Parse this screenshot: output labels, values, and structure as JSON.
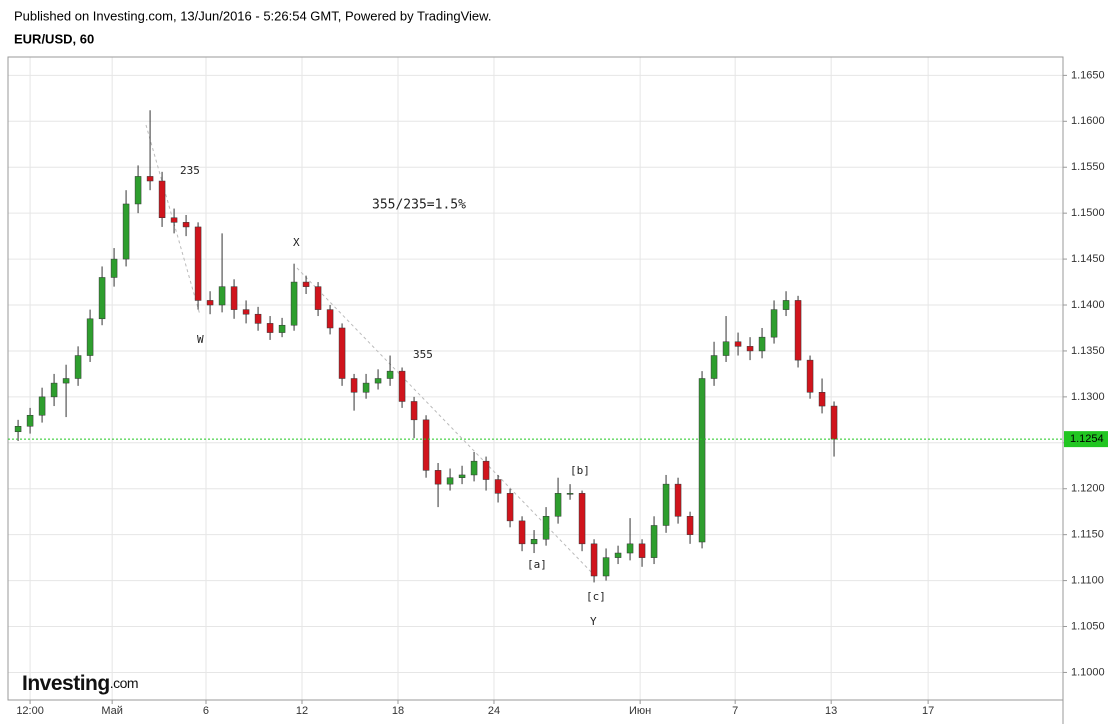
{
  "header": {
    "published": "Published on Investing.com, 13/Jun/2016 - 5:26:54 GMT, Powered by TradingView.",
    "symbol": "EUR/USD, 60"
  },
  "logo": {
    "brand": "Investing",
    "suffix": ".com"
  },
  "chart_data": {
    "type": "candlestick",
    "x": [
      -0.5,
      0,
      0.5,
      1,
      1.5,
      2,
      2.5,
      3,
      3.5,
      4,
      4.5,
      5,
      5.5,
      6,
      6.5,
      7,
      7.5,
      8,
      8.5,
      9,
      9.5,
      10,
      10.5,
      11,
      11.5,
      12,
      12.5,
      13,
      13.5,
      14,
      14.5,
      15,
      15.5,
      16,
      16.5,
      17,
      17.5,
      18,
      18.5,
      19,
      19.5,
      20,
      20.5,
      21,
      21.5,
      22,
      22.5,
      23,
      23.5,
      24,
      24.5,
      25,
      25.5,
      26,
      26.5,
      27,
      27.5,
      28,
      28.5,
      29,
      29.5,
      30,
      30.5,
      31,
      31.5,
      32,
      32.5,
      33,
      33.5
    ],
    "open": [
      1.1262,
      1.1268,
      1.128,
      1.13,
      1.1315,
      1.132,
      1.1345,
      1.1385,
      1.143,
      1.145,
      1.151,
      1.154,
      1.1535,
      1.1495,
      1.149,
      1.1485,
      1.1405,
      1.14,
      1.142,
      1.1395,
      1.139,
      1.138,
      1.137,
      1.1378,
      1.1425,
      1.142,
      1.1395,
      1.1375,
      1.132,
      1.1305,
      1.1315,
      1.132,
      1.1328,
      1.1295,
      1.1275,
      1.122,
      1.1205,
      1.1212,
      1.1215,
      1.123,
      1.121,
      1.1195,
      1.1165,
      1.114,
      1.1145,
      1.117,
      1.1195,
      1.1195,
      1.114,
      1.1105,
      1.1125,
      1.113,
      1.114,
      1.1125,
      1.116,
      1.1205,
      1.117,
      1.1142,
      1.132,
      1.1345,
      1.136,
      1.1355,
      1.135,
      1.1365,
      1.1395,
      1.1405,
      1.134,
      1.1305,
      1.129
    ],
    "high": [
      1.1275,
      1.1288,
      1.131,
      1.1325,
      1.1335,
      1.1355,
      1.1395,
      1.1442,
      1.1462,
      1.1525,
      1.1552,
      1.1612,
      1.1545,
      1.1505,
      1.1498,
      1.149,
      1.1415,
      1.1478,
      1.1428,
      1.1405,
      1.1398,
      1.1388,
      1.1386,
      1.1445,
      1.1432,
      1.1425,
      1.14,
      1.138,
      1.1325,
      1.1325,
      1.133,
      1.1345,
      1.1332,
      1.13,
      1.128,
      1.1228,
      1.1222,
      1.1225,
      1.124,
      1.1235,
      1.1215,
      1.12,
      1.117,
      1.1155,
      1.118,
      1.1212,
      1.1205,
      1.1198,
      1.1145,
      1.1135,
      1.1138,
      1.1168,
      1.1145,
      1.117,
      1.1215,
      1.1212,
      1.1175,
      1.1328,
      1.136,
      1.1388,
      1.137,
      1.1365,
      1.1375,
      1.1405,
      1.1415,
      1.141,
      1.1345,
      1.132,
      1.1295
    ],
    "low": [
      1.1252,
      1.126,
      1.1272,
      1.129,
      1.1278,
      1.1312,
      1.1338,
      1.1378,
      1.142,
      1.1442,
      1.15,
      1.1525,
      1.1485,
      1.1478,
      1.1475,
      1.1395,
      1.139,
      1.1392,
      1.1385,
      1.138,
      1.1372,
      1.1362,
      1.1365,
      1.1372,
      1.1412,
      1.1388,
      1.1368,
      1.1312,
      1.1285,
      1.1298,
      1.1308,
      1.1312,
      1.1288,
      1.1255,
      1.1212,
      1.118,
      1.1198,
      1.1205,
      1.1208,
      1.1198,
      1.1185,
      1.1158,
      1.1132,
      1.113,
      1.1138,
      1.1162,
      1.1188,
      1.1132,
      1.1098,
      1.11,
      1.1118,
      1.1122,
      1.1115,
      1.1118,
      1.1152,
      1.1162,
      1.114,
      1.1135,
      1.1312,
      1.1338,
      1.1345,
      1.134,
      1.1342,
      1.1358,
      1.1388,
      1.1332,
      1.1298,
      1.1282,
      1.1235
    ],
    "close": [
      1.1268,
      1.128,
      1.13,
      1.1315,
      1.132,
      1.1345,
      1.1385,
      1.143,
      1.145,
      1.151,
      1.154,
      1.1535,
      1.1495,
      1.149,
      1.1485,
      1.1405,
      1.14,
      1.142,
      1.1395,
      1.139,
      1.138,
      1.137,
      1.1378,
      1.1425,
      1.142,
      1.1395,
      1.1375,
      1.132,
      1.1305,
      1.1315,
      1.132,
      1.1328,
      1.1295,
      1.1275,
      1.122,
      1.1205,
      1.1212,
      1.1215,
      1.123,
      1.121,
      1.1195,
      1.1165,
      1.114,
      1.1145,
      1.117,
      1.1195,
      1.1195,
      1.114,
      1.1105,
      1.1125,
      1.113,
      1.114,
      1.1125,
      1.116,
      1.1205,
      1.117,
      1.115,
      1.132,
      1.1345,
      1.136,
      1.1355,
      1.135,
      1.1365,
      1.1395,
      1.1405,
      1.134,
      1.1305,
      1.129,
      1.1254
    ],
    "up_color": "#2e9e2e",
    "down_color": "#d0141c",
    "last_price": 1.1254,
    "last_price_color": "#21c621",
    "xlim": [
      -0.92,
      43.04
    ],
    "xticks": [
      {
        "value": 0,
        "label": "12:00"
      },
      {
        "value": 3.42,
        "label": "Май"
      },
      {
        "value": 7.33,
        "label": "6"
      },
      {
        "value": 11.33,
        "label": "12"
      },
      {
        "value": 15.33,
        "label": "18"
      },
      {
        "value": 19.33,
        "label": "24"
      },
      {
        "value": 25.42,
        "label": "Июн"
      },
      {
        "value": 29.38,
        "label": "7"
      },
      {
        "value": 33.38,
        "label": "13"
      },
      {
        "value": 37.42,
        "label": "17"
      }
    ],
    "ylim": [
      1.097,
      1.167
    ],
    "yticks": [
      {
        "value": 1.1,
        "label": "1.1000"
      },
      {
        "value": 1.105,
        "label": "1.1050"
      },
      {
        "value": 1.11,
        "label": "1.1100"
      },
      {
        "value": 1.115,
        "label": "1.1150"
      },
      {
        "value": 1.12,
        "label": "1.1200"
      },
      {
        "value": 1.125,
        "label": "1.1250"
      },
      {
        "value": 1.13,
        "label": "1.1300"
      },
      {
        "value": 1.135,
        "label": "1.1350"
      },
      {
        "value": 1.14,
        "label": "1.1400"
      },
      {
        "value": 1.145,
        "label": "1.1450"
      },
      {
        "value": 1.15,
        "label": "1.1500"
      },
      {
        "value": 1.155,
        "label": "1.1550"
      },
      {
        "value": 1.16,
        "label": "1.1600"
      },
      {
        "value": 1.165,
        "label": "1.1650"
      }
    ],
    "grid": true,
    "annotations": [
      "235",
      "355/235=1.5%",
      "X",
      "W",
      "355",
      "[b]",
      "[a]",
      "[c]",
      "Y"
    ]
  }
}
